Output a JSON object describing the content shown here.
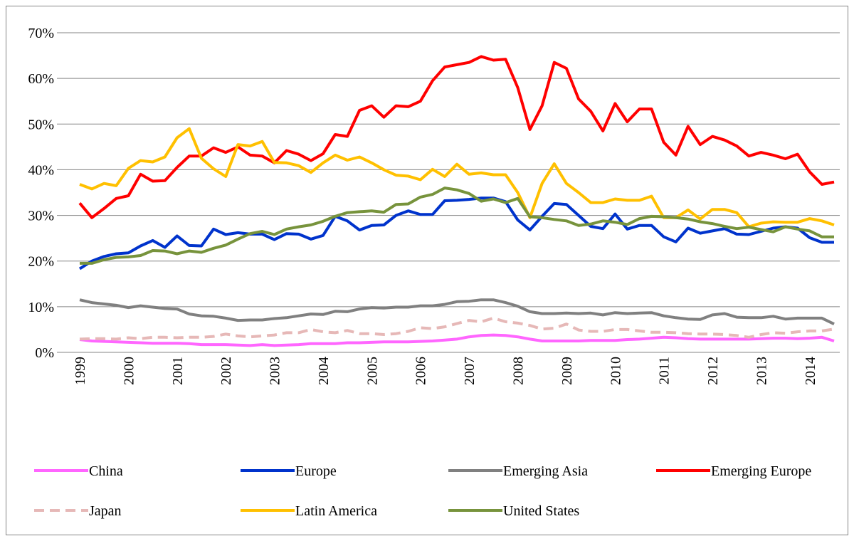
{
  "chart_data": {
    "type": "line",
    "categories": [
      "1999",
      null,
      null,
      null,
      "2000",
      null,
      null,
      null,
      "2001",
      null,
      null,
      null,
      "2002",
      null,
      null,
      null,
      "2003",
      null,
      null,
      null,
      "2004",
      null,
      null,
      null,
      "2005",
      null,
      null,
      null,
      "2006",
      null,
      null,
      null,
      "2007",
      null,
      null,
      null,
      "2008",
      null,
      null,
      null,
      "2009",
      null,
      null,
      null,
      "2010",
      null,
      null,
      null,
      "2011",
      null,
      null,
      null,
      "2012",
      null,
      null,
      null,
      "2013",
      null,
      null,
      null,
      "2014",
      null,
      null
    ],
    "ylim": [
      0,
      70
    ],
    "yticks": [
      {
        "value": 0,
        "label": "0%"
      },
      {
        "value": 10,
        "label": "10%"
      },
      {
        "value": 20,
        "label": "20%"
      },
      {
        "value": 30,
        "label": "30%"
      },
      {
        "value": 40,
        "label": "40%"
      },
      {
        "value": 50,
        "label": "50%"
      },
      {
        "value": 60,
        "label": "60%"
      },
      {
        "value": 70,
        "label": "70%"
      }
    ],
    "grid": true,
    "legend": "bottom",
    "series": [
      {
        "name": "China",
        "color": "#ff66ff",
        "dashed": false,
        "values": [
          2.8,
          2.5,
          2.4,
          2.3,
          2.2,
          2.1,
          2.0,
          2.0,
          2.0,
          1.9,
          1.7,
          1.7,
          1.7,
          1.6,
          1.5,
          1.7,
          1.5,
          1.6,
          1.7,
          1.9,
          1.9,
          1.9,
          2.1,
          2.1,
          2.2,
          2.3,
          2.3,
          2.3,
          2.4,
          2.5,
          2.7,
          2.9,
          3.4,
          3.7,
          3.8,
          3.7,
          3.4,
          2.9,
          2.5,
          2.5,
          2.5,
          2.5,
          2.6,
          2.6,
          2.6,
          2.8,
          2.9,
          3.1,
          3.3,
          3.2,
          3.0,
          2.9,
          2.9,
          2.9,
          2.9,
          2.9,
          3.0,
          3.1,
          3.1,
          3.0,
          3.1,
          3.3,
          2.5
        ]
      },
      {
        "name": "Europe",
        "color": "#0033cc",
        "dashed": false,
        "values": [
          18.3,
          20,
          21,
          21.6,
          21.8,
          23.3,
          24.5,
          23,
          25.5,
          23.4,
          23.3,
          27,
          25.8,
          26.2,
          25.9,
          25.9,
          24.7,
          26,
          25.9,
          24.8,
          25.6,
          29.8,
          28.8,
          26.8,
          27.8,
          27.9,
          30,
          31,
          30.2,
          30.2,
          33.2,
          33.3,
          33.5,
          33.8,
          33.8,
          33,
          29,
          26.8,
          29.8,
          32.6,
          32.4,
          30,
          27.6,
          27.1,
          30.3,
          27,
          27.8,
          27.8,
          25.3,
          24.2,
          27.2,
          26.1,
          26.6,
          27.1,
          25.9,
          25.8,
          26.5,
          27.2,
          27.5,
          27.2,
          25.1,
          24.1,
          24.1
        ]
      },
      {
        "name": "Emerging Asia",
        "color": "#808080",
        "dashed": false,
        "values": [
          11.5,
          10.9,
          10.6,
          10.3,
          9.8,
          10.2,
          9.9,
          9.6,
          9.5,
          8.4,
          8,
          7.9,
          7.5,
          7,
          7.1,
          7.1,
          7.4,
          7.6,
          8,
          8.4,
          8.3,
          9,
          8.9,
          9.5,
          9.8,
          9.7,
          9.9,
          9.9,
          10.2,
          10.2,
          10.5,
          11.1,
          11.2,
          11.5,
          11.5,
          10.9,
          10.1,
          8.9,
          8.5,
          8.5,
          8.6,
          8.5,
          8.6,
          8.2,
          8.7,
          8.5,
          8.6,
          8.7,
          8,
          7.6,
          7.3,
          7.2,
          8.2,
          8.5,
          7.7,
          7.6,
          7.6,
          7.9,
          7.3,
          7.5,
          7.5,
          7.5,
          6.2
        ]
      },
      {
        "name": "Emerging Europe",
        "color": "#ff0000",
        "dashed": false,
        "values": [
          32.7,
          29.5,
          31.5,
          33.7,
          34.3,
          39,
          37.5,
          37.6,
          40.5,
          43,
          43,
          44.8,
          43.8,
          45,
          43.2,
          43,
          41.5,
          44.2,
          43.4,
          42,
          43.5,
          47.7,
          47.3,
          53,
          54,
          51.5,
          54,
          53.8,
          55,
          59.5,
          62.5,
          63,
          63.5,
          64.8,
          64,
          64.2,
          58,
          48.8,
          54,
          63.5,
          62.2,
          55.5,
          52.8,
          48.5,
          54.5,
          50.5,
          53.3,
          53.3,
          46,
          43.2,
          49.5,
          45.5,
          47.3,
          46.5,
          45.2,
          43,
          43.8,
          43.2,
          42.4,
          43.4,
          39.5,
          36.8,
          37.3
        ]
      },
      {
        "name": "Japan",
        "color": "#e6b8b7",
        "dashed": true,
        "values": [
          2.9,
          3.0,
          3.0,
          2.9,
          3.2,
          3.0,
          3.3,
          3.3,
          3.2,
          3.3,
          3.3,
          3.5,
          4.0,
          3.6,
          3.4,
          3.6,
          3.8,
          4.3,
          4.3,
          5.0,
          4.5,
          4.3,
          4.8,
          4.1,
          4.1,
          3.9,
          4.1,
          4.6,
          5.4,
          5.2,
          5.6,
          6.3,
          7.0,
          6.7,
          7.5,
          6.7,
          6.4,
          5.9,
          5.1,
          5.3,
          6.2,
          4.9,
          4.6,
          4.6,
          5.0,
          5.0,
          4.7,
          4.4,
          4.4,
          4.3,
          4.1,
          4.0,
          4.0,
          3.9,
          3.7,
          3.3,
          3.9,
          4.3,
          4.2,
          4.5,
          4.7,
          4.7,
          5.1
        ]
      },
      {
        "name": "Latin America",
        "color": "#ffc000",
        "dashed": false,
        "values": [
          36.8,
          35.8,
          37,
          36.5,
          40.3,
          42,
          41.7,
          42.8,
          47,
          49,
          42.5,
          40.2,
          38.5,
          45.5,
          45.2,
          46.2,
          41.6,
          41.5,
          40.9,
          39.4,
          41.5,
          43.2,
          42.1,
          42.8,
          41.5,
          40,
          38.8,
          38.6,
          37.8,
          40.1,
          38.5,
          41.2,
          39,
          39.3,
          38.9,
          38.9,
          35,
          29.5,
          37,
          41.3,
          37,
          35,
          32.8,
          32.8,
          33.6,
          33.3,
          33.3,
          34.2,
          29.5,
          29.5,
          31.2,
          29.2,
          31.3,
          31.3,
          30.6,
          27.5,
          28.3,
          28.6,
          28.5,
          28.5,
          29.3,
          28.8,
          27.9
        ]
      },
      {
        "name": "United States",
        "color": "#77933c",
        "dashed": false,
        "values": [
          19.5,
          19.5,
          20.3,
          20.8,
          20.9,
          21.2,
          22.3,
          22.2,
          21.6,
          22.2,
          21.9,
          22.8,
          23.5,
          24.8,
          26,
          26.5,
          25.8,
          27,
          27.5,
          27.9,
          28.7,
          29.8,
          30.6,
          30.8,
          31,
          30.7,
          32.4,
          32.5,
          34,
          34.6,
          36,
          35.6,
          34.8,
          33.1,
          33.6,
          32.8,
          33.7,
          29.7,
          29.5,
          29.1,
          28.8,
          27.8,
          28.1,
          28.8,
          28.5,
          28,
          29.3,
          29.8,
          29.7,
          29.5,
          29.2,
          28.6,
          28.2,
          27.6,
          27.1,
          27.4,
          26.9,
          26.4,
          27.5,
          27,
          26.6,
          25.3,
          25.3
        ]
      }
    ]
  }
}
